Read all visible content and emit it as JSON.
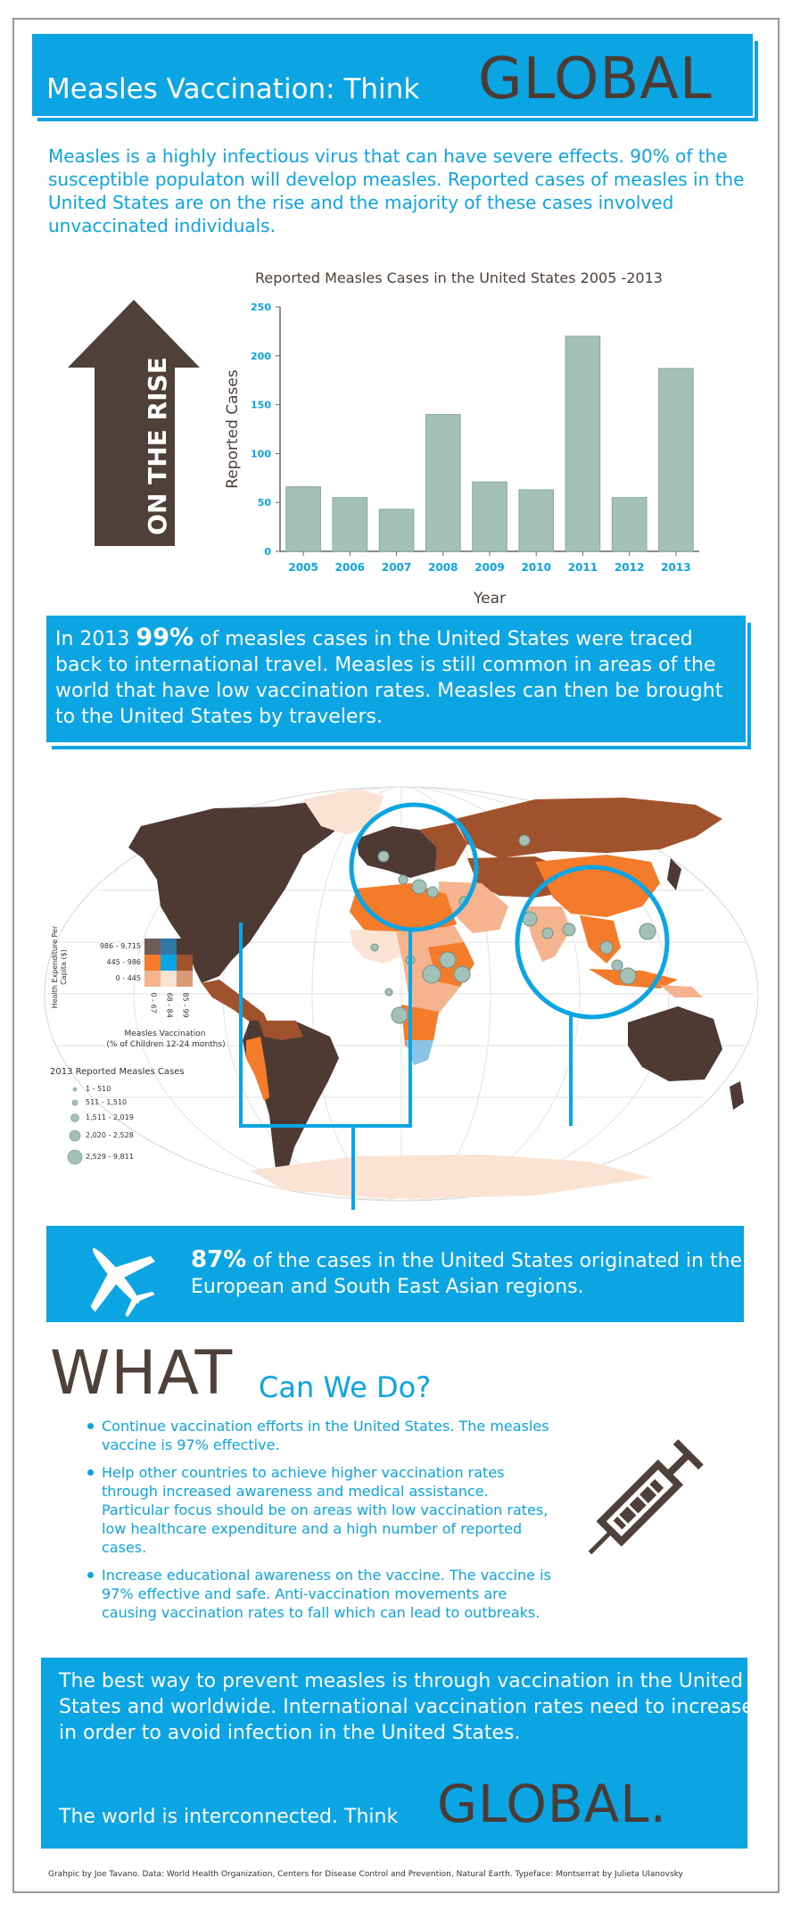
{
  "header": {
    "title": "Measles Vaccination:  Think",
    "global": "GLOBAL"
  },
  "intro": "Measles is a highly infectious virus that can have severe effects.  90% of the susceptible populaton will develop measles.  Reported cases of measles in the United States are on the rise and the majority of these cases involved unvaccinated individuals.",
  "arrow_label": "ON THE RISE",
  "chart_data": {
    "type": "bar",
    "title": "Reported Measles Cases in the United States 2005 -2013",
    "xlabel": "Year",
    "ylabel": "Reported Cases",
    "categories": [
      "2005",
      "2006",
      "2007",
      "2008",
      "2009",
      "2010",
      "2011",
      "2012",
      "2013"
    ],
    "values": [
      66,
      55,
      43,
      140,
      71,
      63,
      220,
      55,
      187
    ],
    "ylim": [
      0,
      250
    ],
    "yticks": [
      0,
      50,
      100,
      150,
      200,
      250
    ],
    "colors": {
      "bar": "#a3c1b6",
      "axis": "#666666",
      "tick": "#0aa5e2"
    }
  },
  "travel_paragraph": {
    "pre": "In 2013 ",
    "highlight": "99%",
    "post": " of measles cases in the United States were traced back to international travel.  Measles is still common in areas of the world that have low vaccination rates.  Measles can then be brought to the United States by travelers."
  },
  "map": {
    "legend_expenditure_title": "Health Expenditure Per Capita ($)",
    "expenditure_rows": [
      "986 - 9,715",
      "445 - 986",
      "0 - 445"
    ],
    "vaccination_cols": [
      "0 - 67",
      "68 - 84",
      "85 - 99"
    ],
    "vaccination_title_1": "Measles Vaccination",
    "vaccination_title_2": "(% of Children 12-24 months)",
    "cases_title": "2013 Reported Measles Cases",
    "case_ranges": [
      "1 - 510",
      "511 - 1,510",
      "1,511 - 2,019",
      "2,020 - 2,528",
      "2,529 - 9,811"
    ],
    "colors": {
      "dark_brown": "#4f3a33",
      "medium_brown": "#a0522d",
      "orange": "#f47b2a",
      "light_peach": "#f6b48e",
      "pale": "#fbe3d3",
      "light_blue": "#8ac3e3",
      "circle": "#a3c1b6"
    }
  },
  "region_paragraph": {
    "highlight": "87%",
    "text": " of the cases in the United States originated in the European and South East Asian regions."
  },
  "what": {
    "big": "WHAT",
    "small": "Can We Do?",
    "bullets": [
      "Continue vaccination efforts in the United States.  The measles vaccine is 97% effective.",
      "Help other countries to achieve higher vaccination rates through increased awareness and medical assistance.  Particular focus should be on areas with low vaccination rates, low healthcare expenditure and a high number of reported cases.",
      "Increase educational awareness on the vaccine.  The vaccine is 97% effective and safe.  Anti-vaccination movements are causing vaccination rates to fall which can lead to outbreaks."
    ]
  },
  "conclusion": {
    "text": "The best way to prevent measles is through vaccination in the United States and worldwide.  International vaccination rates need to increase in order to avoid infection in the United States.",
    "line": "The world is interconnected.  Think",
    "global": "GLOBAL."
  },
  "credits": "Grahpic by Joe Tavano.  Data:  World Health Organization, Centers for Disease Control and Prevention, Natural Earth.  Typeface:  Montserrat by Julieta Ulanovsky",
  "colors": {
    "accent": "#0aa5e2",
    "brown": "#50403a",
    "bar": "#a3c1b6"
  }
}
